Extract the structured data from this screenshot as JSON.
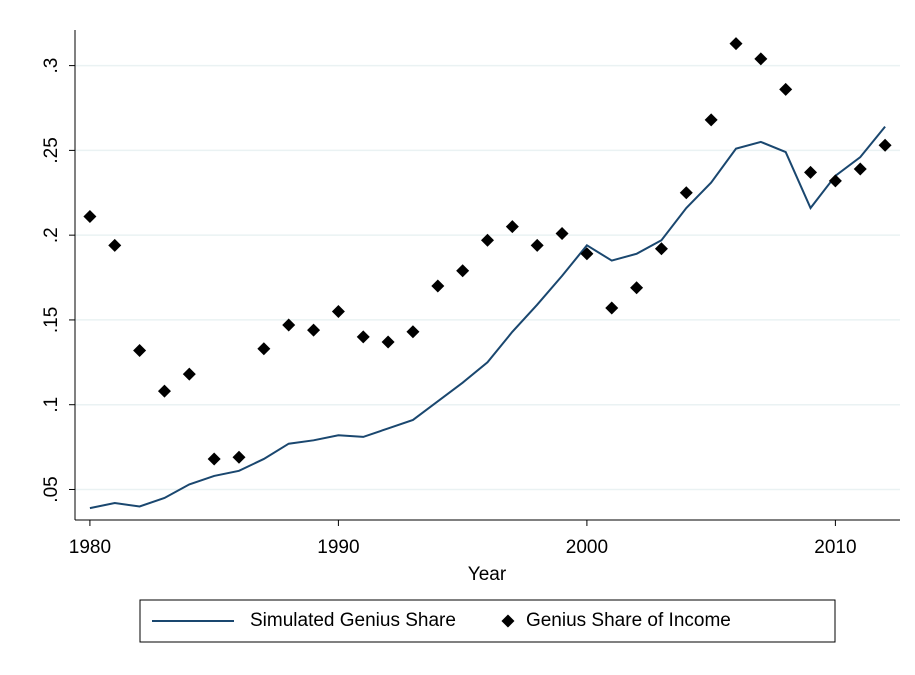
{
  "chart_data": {
    "type": "line",
    "x_label": "Year",
    "x": [
      1980,
      1981,
      1982,
      1983,
      1984,
      1985,
      1986,
      1987,
      1988,
      1989,
      1990,
      1991,
      1992,
      1993,
      1994,
      1995,
      1996,
      1997,
      1998,
      1999,
      2000,
      2001,
      2002,
      2003,
      2004,
      2005,
      2006,
      2007,
      2008,
      2009,
      2010,
      2011,
      2012
    ],
    "series": [
      {
        "name": "Simulated Genius Share",
        "type": "line",
        "color": "#1a476f",
        "values": [
          0.039,
          0.042,
          0.04,
          0.045,
          0.053,
          0.058,
          0.061,
          0.068,
          0.077,
          0.079,
          0.082,
          0.081,
          0.086,
          0.091,
          0.102,
          0.113,
          0.125,
          0.143,
          0.159,
          0.176,
          0.194,
          0.185,
          0.189,
          0.197,
          0.216,
          0.231,
          0.251,
          0.255,
          0.249,
          0.216,
          0.235,
          0.246,
          0.264
        ]
      },
      {
        "name": "Genius Share of Income",
        "type": "scatter",
        "color": "#000000",
        "values": [
          0.211,
          0.194,
          0.132,
          0.108,
          0.118,
          0.068,
          0.069,
          0.133,
          0.147,
          0.144,
          0.155,
          0.14,
          0.137,
          0.143,
          0.17,
          0.179,
          0.197,
          0.205,
          0.194,
          0.201,
          0.189,
          0.157,
          0.169,
          0.192,
          0.225,
          0.268,
          0.313,
          0.304,
          0.286,
          0.237,
          0.232,
          0.239,
          0.253
        ]
      }
    ],
    "xlim": [
      1979.4,
      2012.6
    ],
    "xticks": [
      1980,
      1990,
      2000,
      2010
    ],
    "ylim": [
      0.032,
      0.321
    ],
    "yticks": [
      {
        "value": 0.05,
        "label": ".05"
      },
      {
        "value": 0.1,
        "label": ".1"
      },
      {
        "value": 0.15,
        "label": ".15"
      },
      {
        "value": 0.2,
        "label": ".2"
      },
      {
        "value": 0.25,
        "label": ".25"
      },
      {
        "value": 0.3,
        "label": ".3"
      }
    ],
    "grid": true,
    "legend": "bottom"
  }
}
